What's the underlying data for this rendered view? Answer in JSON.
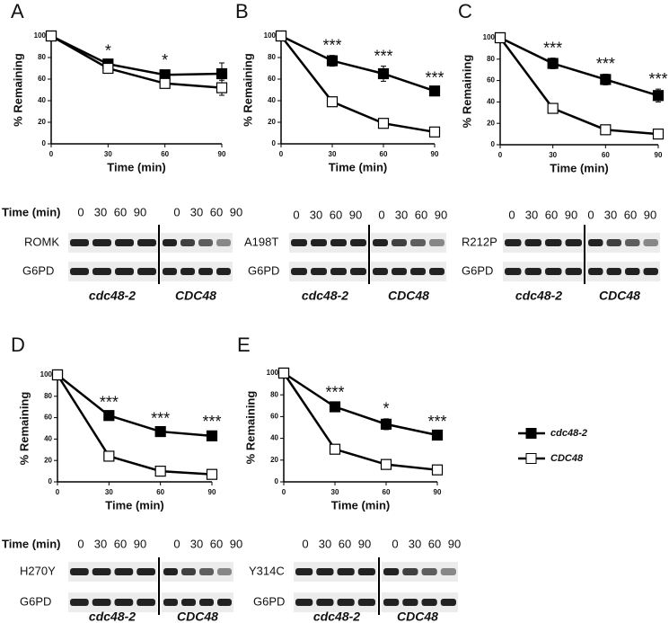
{
  "chart_data": [
    {
      "type": "line",
      "panel": "A",
      "xlabel": "Time (min)",
      "ylabel": "% Remaining",
      "x": [
        0,
        30,
        60,
        90
      ],
      "xlim": [
        0,
        90
      ],
      "xticks": [
        0,
        30,
        60,
        90
      ],
      "ylim": [
        0,
        100
      ],
      "yticks": [
        0,
        20,
        40,
        60,
        80,
        100
      ],
      "series": [
        {
          "name": "cdc48-2",
          "color": "#000000",
          "marker_fill": "#000000",
          "values": [
            100,
            74,
            64,
            65
          ],
          "errors": [
            0,
            3,
            4,
            10
          ]
        },
        {
          "name": "CDC48",
          "color": "#000000",
          "marker_fill": "#ffffff",
          "values": [
            100,
            70,
            56,
            52
          ],
          "errors": [
            0,
            2,
            4,
            7
          ]
        }
      ],
      "annotations": [
        {
          "x": 30,
          "text": "*"
        },
        {
          "x": 60,
          "text": "*"
        }
      ]
    },
    {
      "type": "line",
      "panel": "B",
      "xlabel": "Time (min)",
      "ylabel": "% Remaining",
      "x": [
        0,
        30,
        60,
        90
      ],
      "xlim": [
        0,
        90
      ],
      "xticks": [
        0,
        30,
        60,
        90
      ],
      "ylim": [
        0,
        100
      ],
      "yticks": [
        0,
        20,
        40,
        60,
        80,
        100
      ],
      "series": [
        {
          "name": "cdc48-2",
          "color": "#000000",
          "marker_fill": "#000000",
          "values": [
            100,
            77,
            65,
            49
          ],
          "errors": [
            0,
            5,
            7,
            3
          ]
        },
        {
          "name": "CDC48",
          "color": "#000000",
          "marker_fill": "#ffffff",
          "values": [
            100,
            39,
            19,
            11
          ],
          "errors": [
            0,
            2,
            2,
            2
          ]
        }
      ],
      "annotations": [
        {
          "x": 30,
          "text": "***"
        },
        {
          "x": 60,
          "text": "***"
        },
        {
          "x": 90,
          "text": "***"
        }
      ]
    },
    {
      "type": "line",
      "panel": "C",
      "xlabel": "Time (min)",
      "ylabel": "% Remaining",
      "x": [
        0,
        30,
        60,
        90
      ],
      "xlim": [
        0,
        90
      ],
      "xticks": [
        0,
        30,
        60,
        90
      ],
      "ylim": [
        0,
        100
      ],
      "yticks": [
        0,
        20,
        40,
        60,
        80,
        100
      ],
      "series": [
        {
          "name": "cdc48-2",
          "color": "#000000",
          "marker_fill": "#000000",
          "values": [
            100,
            76,
            61,
            46
          ],
          "errors": [
            0,
            5,
            5,
            6
          ]
        },
        {
          "name": "CDC48",
          "color": "#000000",
          "marker_fill": "#ffffff",
          "values": [
            100,
            34,
            14,
            10
          ],
          "errors": [
            0,
            2,
            2,
            2
          ]
        }
      ],
      "annotations": [
        {
          "x": 30,
          "text": "***"
        },
        {
          "x": 60,
          "text": "***"
        },
        {
          "x": 90,
          "text": "***"
        }
      ]
    },
    {
      "type": "line",
      "panel": "D",
      "xlabel": "Time (min)",
      "ylabel": "% Remaining",
      "x": [
        0,
        30,
        60,
        90
      ],
      "xlim": [
        0,
        90
      ],
      "xticks": [
        0,
        30,
        60,
        90
      ],
      "ylim": [
        0,
        100
      ],
      "yticks": [
        0,
        20,
        40,
        60,
        80,
        100
      ],
      "series": [
        {
          "name": "cdc48-2",
          "color": "#000000",
          "marker_fill": "#000000",
          "values": [
            100,
            62,
            47,
            43
          ],
          "errors": [
            0,
            3,
            3,
            4
          ]
        },
        {
          "name": "CDC48",
          "color": "#000000",
          "marker_fill": "#ffffff",
          "values": [
            100,
            24,
            10,
            7
          ],
          "errors": [
            0,
            2,
            1,
            1
          ]
        }
      ],
      "annotations": [
        {
          "x": 30,
          "text": "***"
        },
        {
          "x": 60,
          "text": "***"
        },
        {
          "x": 90,
          "text": "***"
        }
      ]
    },
    {
      "type": "line",
      "panel": "E",
      "xlabel": "Time (min)",
      "ylabel": "% Remaining",
      "x": [
        0,
        30,
        60,
        90
      ],
      "xlim": [
        0,
        90
      ],
      "xticks": [
        0,
        30,
        60,
        90
      ],
      "ylim": [
        0,
        100
      ],
      "yticks": [
        0,
        20,
        40,
        60,
        80,
        100
      ],
      "series": [
        {
          "name": "cdc48-2",
          "color": "#000000",
          "marker_fill": "#000000",
          "values": [
            100,
            69,
            53,
            43
          ],
          "errors": [
            0,
            4,
            5,
            3
          ]
        },
        {
          "name": "CDC48",
          "color": "#000000",
          "marker_fill": "#ffffff",
          "values": [
            100,
            30,
            16,
            11
          ],
          "errors": [
            0,
            2,
            2,
            2
          ]
        }
      ],
      "annotations": [
        {
          "x": 30,
          "text": "***"
        },
        {
          "x": 60,
          "text": "*"
        },
        {
          "x": 90,
          "text": "***"
        }
      ]
    }
  ],
  "blots": [
    {
      "time_label": "Time (min)",
      "lanes": [
        "0",
        "30",
        "60",
        "90"
      ],
      "proteins": [
        "ROMK",
        "G6PD"
      ],
      "strains": [
        "cdc48-2",
        "CDC48"
      ]
    },
    {
      "lanes": [
        "0",
        "30",
        "60",
        "90"
      ],
      "proteins": [
        "A198T",
        "G6PD"
      ],
      "strains": [
        "cdc48-2",
        "CDC48"
      ]
    },
    {
      "lanes": [
        "0",
        "30",
        "60",
        "90"
      ],
      "proteins": [
        "R212P",
        "G6PD"
      ],
      "strains": [
        "cdc48-2",
        "CDC48"
      ]
    },
    {
      "time_label": "Time (min)",
      "lanes": [
        "0",
        "30",
        "60",
        "90"
      ],
      "proteins": [
        "H270Y",
        "G6PD"
      ],
      "strains": [
        "cdc48-2",
        "CDC48"
      ]
    },
    {
      "lanes": [
        "0",
        "30",
        "60",
        "90"
      ],
      "proteins": [
        "Y314C",
        "G6PD"
      ],
      "strains": [
        "cdc48-2",
        "CDC48"
      ]
    }
  ]
}
